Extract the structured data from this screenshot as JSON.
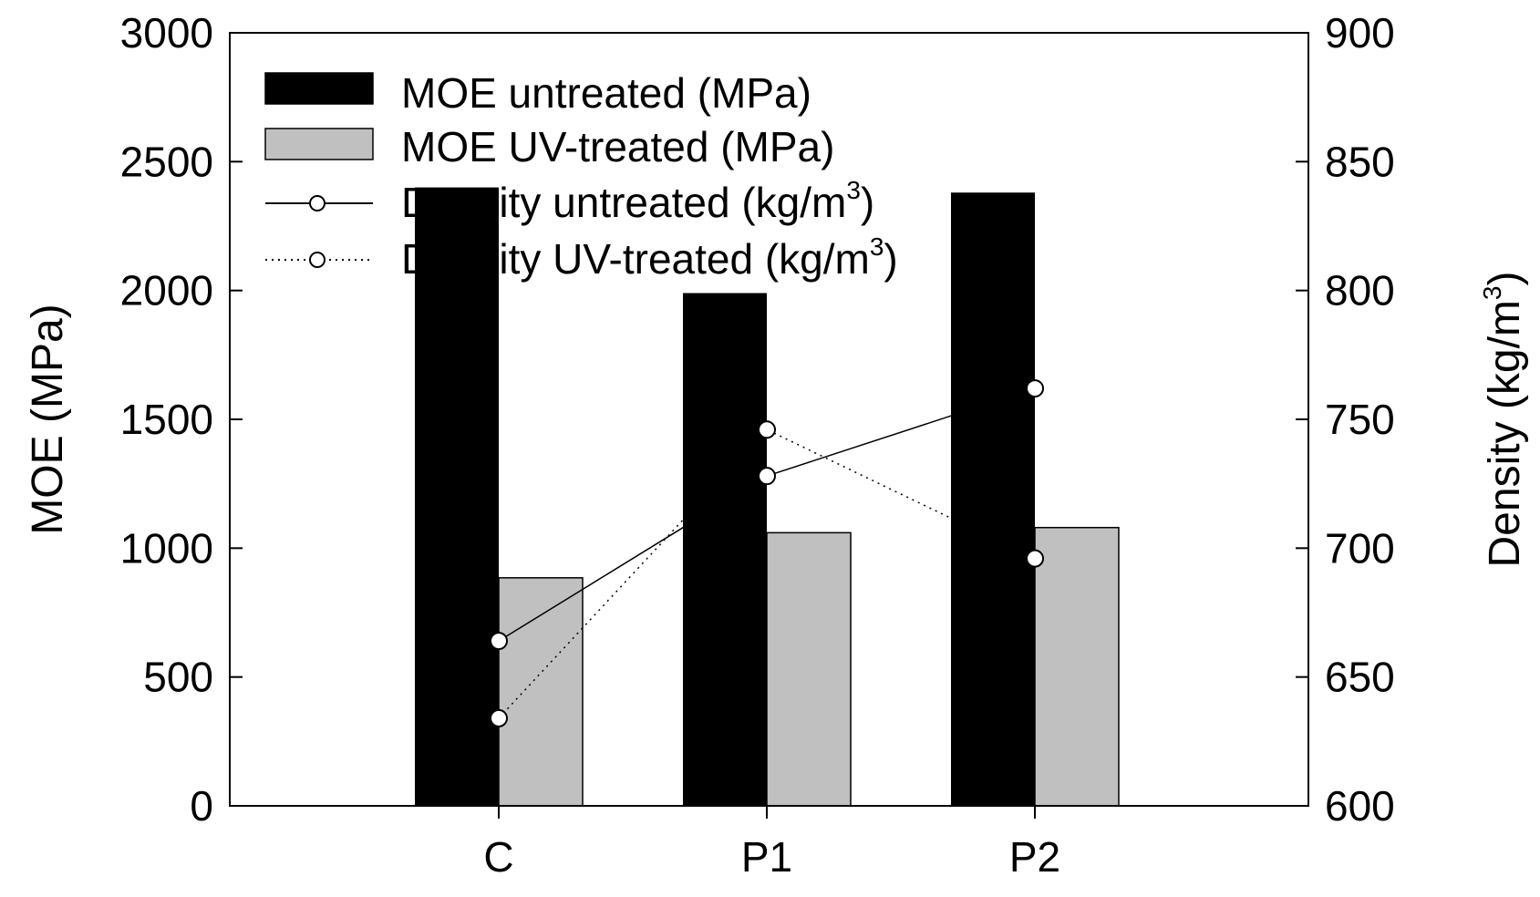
{
  "chart_data": {
    "type": "bar",
    "categories": [
      "C",
      "P1",
      "P2"
    ],
    "bar_series": [
      {
        "name": "MOE untreated",
        "legend_label": "MOE untreated (MPa)",
        "color": "#000000",
        "values": [
          2400,
          1990,
          2380
        ]
      },
      {
        "name": "MOE UV-treated",
        "legend_label": "MOE UV-treated (MPa)",
        "color": "#c0c0c0",
        "values": [
          885,
          1060,
          1080
        ]
      }
    ],
    "line_series": [
      {
        "name": "Density untreated",
        "legend_label_main": "Density untreated (kg/m",
        "legend_label_sup": "3",
        "legend_label_end": ")",
        "style": "solid",
        "values": [
          664,
          728,
          762
        ]
      },
      {
        "name": "Density UV-treated",
        "legend_label_main": "Density UV-treated (kg/m",
        "legend_label_sup": "3",
        "legend_label_end": ")",
        "style": "dotted",
        "values": [
          634,
          746,
          696
        ]
      }
    ],
    "y_left": {
      "label": "MOE (MPa)",
      "lim": [
        0,
        3000
      ],
      "ticks": [
        "0",
        "500",
        "1000",
        "1500",
        "2000",
        "2500",
        "3000"
      ]
    },
    "y_right": {
      "label_main": "Density (kg/m",
      "label_sup": "3",
      "label_end": ")",
      "lim": [
        600,
        900
      ],
      "ticks": [
        "600",
        "650",
        "700",
        "750",
        "800",
        "850",
        "900"
      ]
    },
    "legend_position": "top-left",
    "grid": false
  }
}
